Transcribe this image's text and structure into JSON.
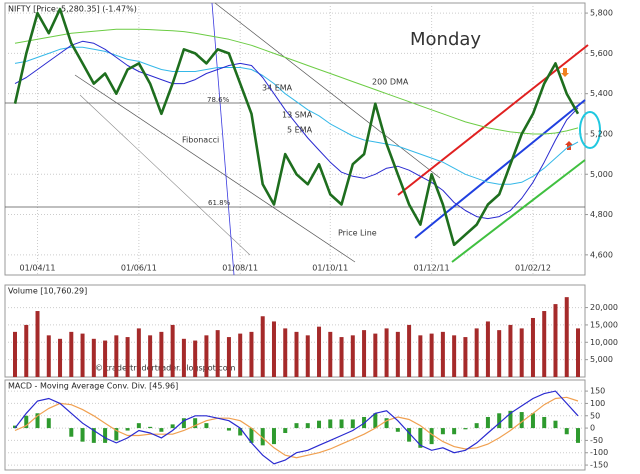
{
  "chart_data": [
    {
      "type": "line",
      "title": "NIFTY [Price: 5,280.35] (-1.47%)",
      "categories": [
        null,
        null,
        "01/04/11",
        null,
        null,
        null,
        null,
        null,
        null,
        null,
        null,
        "01/06/11",
        null,
        null,
        null,
        null,
        null,
        null,
        null,
        null,
        "01/08/11",
        null,
        null,
        null,
        null,
        null,
        null,
        null,
        "01/10/11",
        null,
        null,
        null,
        null,
        null,
        null,
        null,
        null,
        "01/12/11",
        null,
        null,
        null,
        null,
        null,
        null,
        null,
        null,
        "01/02/12",
        null,
        null,
        null,
        null
      ],
      "series": [
        {
          "name": "Price Line",
          "color": "#1e6e1e",
          "values": [
            5350,
            5600,
            5800,
            5700,
            5820,
            5650,
            5550,
            5450,
            5500,
            5400,
            5520,
            5550,
            5450,
            5300,
            5450,
            5620,
            5600,
            5550,
            5620,
            5600,
            5450,
            5300,
            4950,
            4850,
            5100,
            5000,
            4950,
            5050,
            4900,
            4850,
            5050,
            5100,
            5350,
            5150,
            5000,
            4850,
            4750,
            5000,
            4850,
            4650,
            4700,
            4750,
            4850,
            4900,
            5050,
            5200,
            5300,
            5450,
            5550,
            5400,
            5300
          ]
        },
        {
          "name": "13 SMA",
          "color": "#2a2ad0",
          "values": [
            5450,
            5480,
            5520,
            5560,
            5600,
            5640,
            5660,
            5650,
            5620,
            5580,
            5540,
            5510,
            5490,
            5470,
            5450,
            5450,
            5470,
            5500,
            5520,
            5540,
            5550,
            5540,
            5480,
            5400,
            5320,
            5250,
            5180,
            5120,
            5060,
            5010,
            4990,
            4980,
            5000,
            5030,
            5040,
            5020,
            4990,
            4960,
            4920,
            4860,
            4820,
            4790,
            4780,
            4790,
            4820,
            4880,
            4960,
            5060,
            5170,
            5270,
            5330
          ]
        },
        {
          "name": "34 EMA",
          "color": "#35b8e8",
          "values": [
            5550,
            5560,
            5580,
            5600,
            5620,
            5630,
            5630,
            5620,
            5610,
            5590,
            5570,
            5560,
            5540,
            5520,
            5510,
            5510,
            5510,
            5520,
            5530,
            5530,
            5530,
            5520,
            5490,
            5450,
            5400,
            5360,
            5320,
            5290,
            5250,
            5220,
            5190,
            5170,
            5160,
            5150,
            5140,
            5120,
            5100,
            5080,
            5060,
            5030,
            5000,
            4980,
            4960,
            4950,
            4950,
            4960,
            4990,
            5030,
            5080,
            5130,
            5160
          ]
        },
        {
          "name": "200 DMA",
          "color": "#6ccc44",
          "values": [
            5650,
            5660,
            5670,
            5680,
            5690,
            5700,
            5705,
            5710,
            5715,
            5720,
            5720,
            5720,
            5718,
            5715,
            5712,
            5708,
            5700,
            5690,
            5680,
            5670,
            5655,
            5640,
            5620,
            5600,
            5580,
            5560,
            5540,
            5520,
            5500,
            5480,
            5460,
            5440,
            5420,
            5400,
            5380,
            5360,
            5340,
            5320,
            5300,
            5280,
            5260,
            5245,
            5230,
            5220,
            5210,
            5205,
            5200,
            5200,
            5205,
            5215,
            5230
          ]
        }
      ],
      "annotations": [
        "5 EMA",
        "Fibonacci",
        "78.6%",
        "61.8%",
        "Monday",
        "© tradertradertrader.blogspot.com"
      ],
      "ylim": [
        4500,
        5850
      ],
      "yticks": [
        {
          "value": 4600,
          "label": "4,600"
        },
        {
          "value": 4800,
          "label": "4,800"
        },
        {
          "value": 5000,
          "label": "5,000"
        },
        {
          "value": 5200,
          "label": "5,200"
        },
        {
          "value": 5400,
          "label": "5,400"
        },
        {
          "value": 5600,
          "label": "5,600"
        },
        {
          "value": 5800,
          "label": "5,800"
        }
      ],
      "grid": true
    },
    {
      "type": "bar",
      "title": "Volume [10,760.29]",
      "color": "#a52a2a",
      "values": [
        13000,
        15000,
        19000,
        12000,
        11000,
        13000,
        12500,
        11000,
        10500,
        12000,
        11500,
        14000,
        12000,
        13000,
        15000,
        11000,
        10500,
        12000,
        13500,
        11500,
        12500,
        13000,
        17500,
        16000,
        14000,
        13000,
        12000,
        14500,
        13000,
        11500,
        12000,
        13500,
        12500,
        14000,
        13000,
        15000,
        12000,
        12500,
        13000,
        12000,
        11500,
        14000,
        16000,
        13500,
        15000,
        14000,
        17000,
        19000,
        21000,
        23000,
        14000
      ],
      "ylim": [
        0,
        26500
      ],
      "yticks": [
        {
          "value": 5000,
          "label": "5,000"
        },
        {
          "value": 10000,
          "label": "10,000"
        },
        {
          "value": 15000,
          "label": "15,000"
        },
        {
          "value": 20000,
          "label": "20,000"
        }
      ],
      "grid": true
    },
    {
      "type": "combo",
      "title": "MACD - Moving Average Conv. Div. [45.96]",
      "series": [
        {
          "kind": "bar",
          "color": "#2e9a2e",
          "values": [
            10,
            50,
            60,
            40,
            0,
            -35,
            -55,
            -60,
            -60,
            -50,
            -10,
            20,
            5,
            -15,
            15,
            40,
            40,
            20,
            0,
            -10,
            -30,
            -60,
            -70,
            -65,
            -20,
            20,
            20,
            30,
            35,
            35,
            35,
            45,
            60,
            40,
            -15,
            -55,
            -80,
            -65,
            -25,
            -25,
            -5,
            20,
            45,
            60,
            70,
            65,
            60,
            45,
            30,
            -25,
            -60
          ]
        },
        {
          "kind": "line",
          "color": "#f0a050",
          "values": [
            -10,
            10,
            50,
            80,
            100,
            95,
            75,
            50,
            20,
            -10,
            -30,
            -30,
            -25,
            -25,
            -25,
            -10,
            10,
            30,
            40,
            40,
            30,
            0,
            -40,
            -80,
            -110,
            -120,
            -110,
            -100,
            -85,
            -65,
            -45,
            -25,
            0,
            30,
            45,
            35,
            10,
            -25,
            -55,
            -75,
            -85,
            -80,
            -65,
            -40,
            -10,
            25,
            60,
            95,
            120,
            125,
            110
          ]
        },
        {
          "kind": "line",
          "color": "#2a2ad0",
          "values": [
            0,
            60,
            110,
            120,
            100,
            60,
            20,
            -10,
            -40,
            -60,
            -40,
            -10,
            -20,
            -40,
            -10,
            30,
            50,
            50,
            40,
            30,
            0,
            -60,
            -110,
            -145,
            -130,
            -100,
            -90,
            -70,
            -50,
            -30,
            -10,
            20,
            60,
            70,
            30,
            -20,
            -70,
            -90,
            -80,
            -100,
            -90,
            -60,
            -20,
            20,
            60,
            90,
            120,
            140,
            150,
            100,
            50
          ]
        }
      ],
      "ylim": [
        -170,
        195
      ],
      "yticks": [
        -150,
        -100,
        -50,
        0,
        50,
        100,
        150
      ],
      "grid": true
    }
  ]
}
